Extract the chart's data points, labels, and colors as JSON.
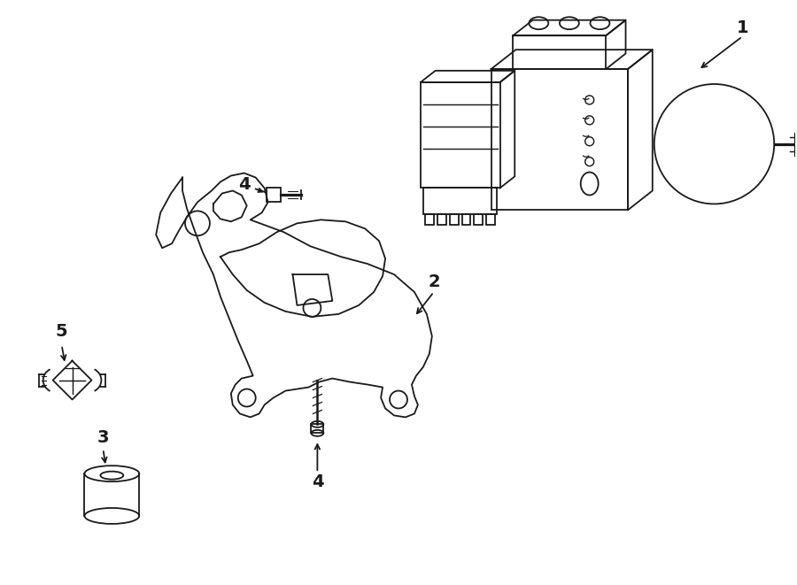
{
  "background_color": "#ffffff",
  "line_color": "#1a1a1a",
  "line_width": 1.3,
  "font_size": 14,
  "font_weight": "bold",
  "fig_width": 9.0,
  "fig_height": 6.61,
  "dpi": 100
}
